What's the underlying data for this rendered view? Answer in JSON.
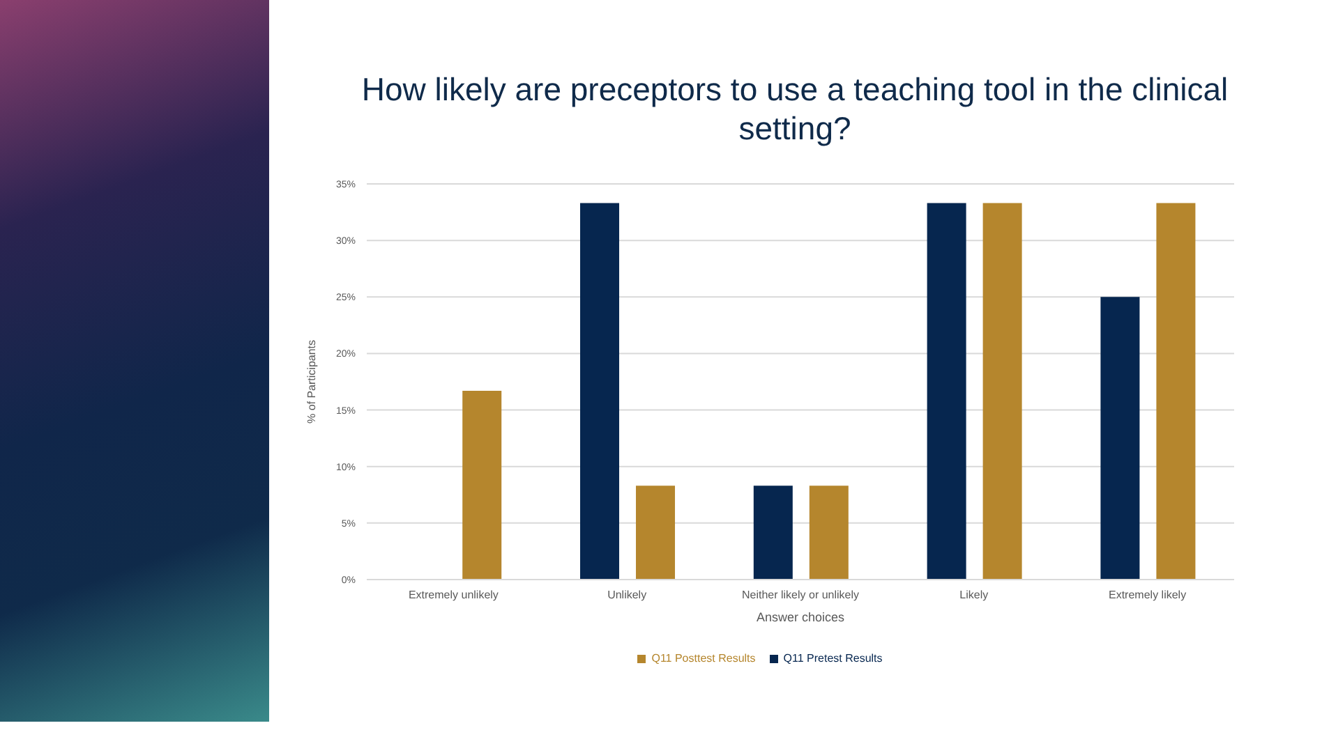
{
  "chart_data": {
    "type": "bar",
    "title": "How likely are preceptors to use a teaching tool in the clinical setting?",
    "xlabel": "Answer choices",
    "ylabel": "% of Participants",
    "categories": [
      "Extremely unlikely",
      "Unlikely",
      "Neither likely or unlikely",
      "Likely",
      "Extremely likely"
    ],
    "series": [
      {
        "name": "Q11 Pretest Results",
        "color": "#06264f",
        "values": [
          0,
          33.3,
          8.3,
          33.3,
          25
        ]
      },
      {
        "name": "Q11 Posttest Results",
        "color": "#b5862d",
        "values": [
          16.7,
          8.3,
          8.3,
          33.3,
          33.3
        ]
      }
    ],
    "ylim": [
      0,
      35
    ],
    "yticks": [
      {
        "value": 0,
        "label": "0%"
      },
      {
        "value": 5,
        "label": "5%"
      },
      {
        "value": 10,
        "label": "10%"
      },
      {
        "value": 15,
        "label": "15%"
      },
      {
        "value": 20,
        "label": "20%"
      },
      {
        "value": 25,
        "label": "25%"
      },
      {
        "value": 30,
        "label": "30%"
      },
      {
        "value": 35,
        "label": "35%"
      }
    ],
    "grid": "y",
    "legend": "bottom"
  }
}
